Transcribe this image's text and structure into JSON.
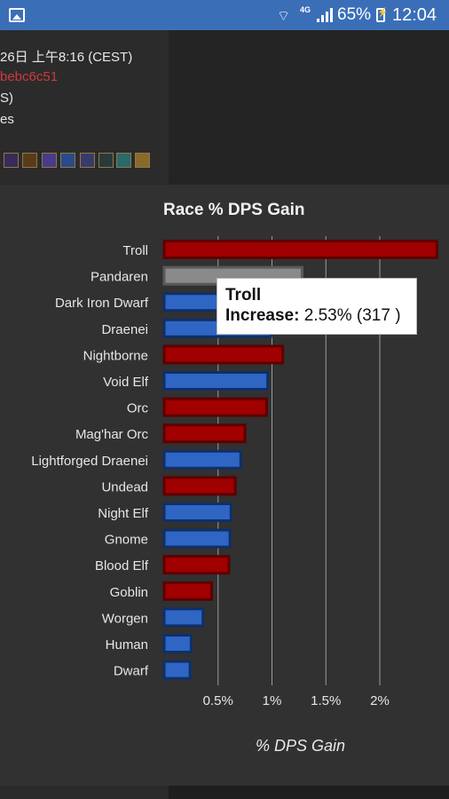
{
  "status_bar": {
    "signal_label": "4G",
    "battery": "65%",
    "time": "12:04"
  },
  "details": {
    "line1": "26日 上午8:16 (CEST)",
    "line2": "bebc6c51",
    "line3": "S)",
    "line4": "es"
  },
  "tooltip": {
    "title": "Troll",
    "label": "Increase:",
    "value": "2.53% (317 )"
  },
  "colors": {
    "red": "#a00000",
    "blue": "#2f66c4",
    "grey": "#8a8a8a",
    "status_bar": "#3a6fb8"
  },
  "chart_data": {
    "type": "bar",
    "orientation": "horizontal",
    "title": "Race % DPS Gain",
    "xlabel": "% DPS Gain",
    "ylabel": "",
    "xlim": [
      0,
      2.55
    ],
    "x_ticks": [
      0.5,
      1,
      1.5,
      2
    ],
    "x_tick_labels": [
      "0.5%",
      "1%",
      "1.5%",
      "2%"
    ],
    "grid": true,
    "categories": [
      "Troll",
      "Pandaren",
      "Dark Iron Dwarf",
      "Draenei",
      "Nightborne",
      "Void Elf",
      "Orc",
      "Mag'har Orc",
      "Lightforged Draenei",
      "Undead",
      "Night Elf",
      "Gnome",
      "Blood Elf",
      "Goblin",
      "Worgen",
      "Human",
      "Dwarf"
    ],
    "values": [
      2.53,
      1.28,
      1.02,
      0.99,
      1.1,
      0.96,
      0.95,
      0.75,
      0.71,
      0.66,
      0.62,
      0.61,
      0.6,
      0.44,
      0.36,
      0.25,
      0.24
    ],
    "bar_colors": [
      "red",
      "grey",
      "blue",
      "blue",
      "red",
      "blue",
      "red",
      "red",
      "blue",
      "red",
      "blue",
      "blue",
      "red",
      "red",
      "blue",
      "blue",
      "blue"
    ]
  }
}
